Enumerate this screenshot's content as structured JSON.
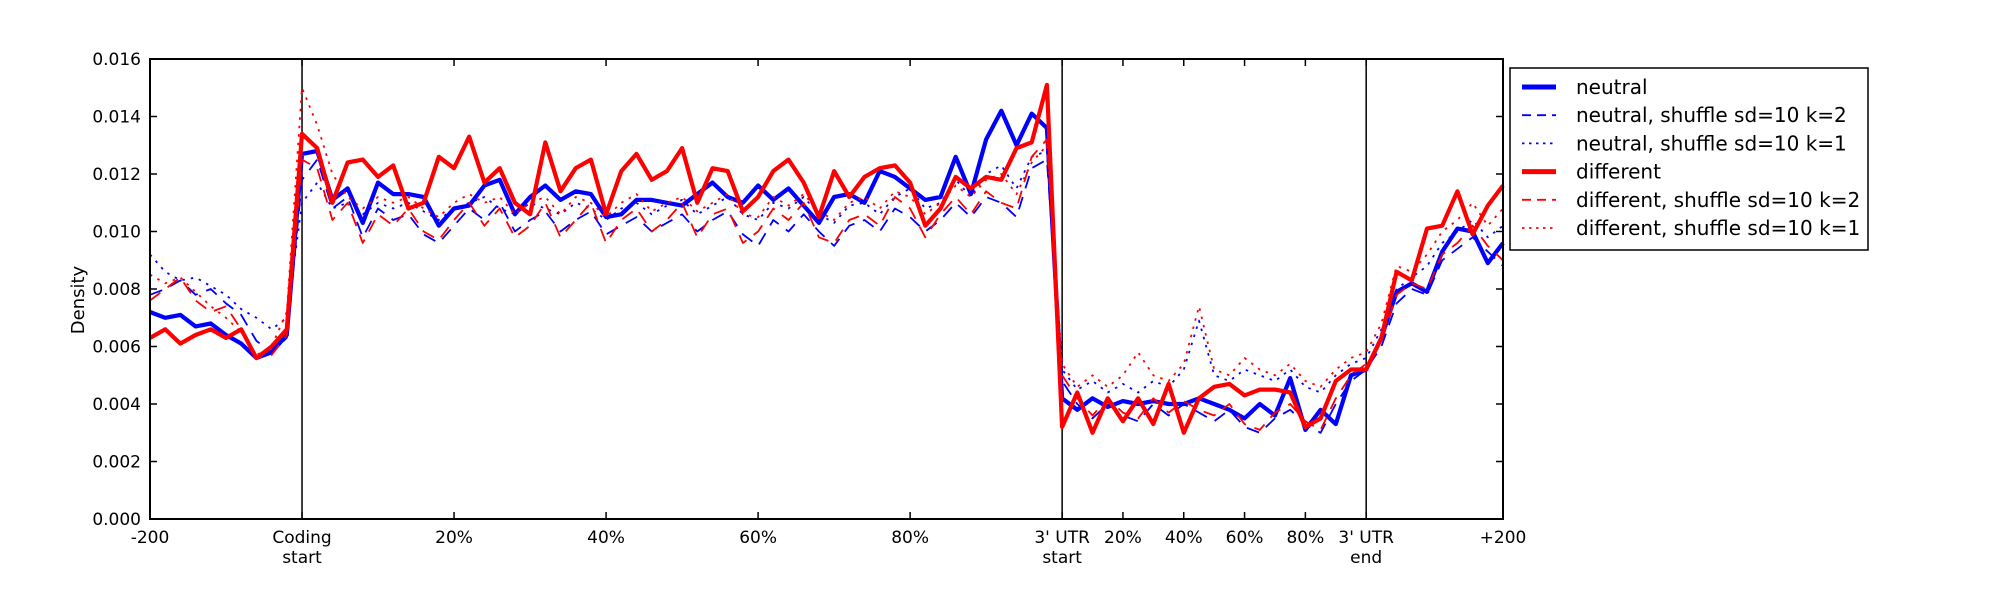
{
  "figure": {
    "background": "#ffffff",
    "frame_color": "#000000"
  },
  "chart_data": {
    "type": "line",
    "title": "",
    "ylabel": "Density",
    "xlabel": "",
    "ylim": [
      0,
      0.016
    ],
    "grid": false,
    "legend_position": "outside-top-right",
    "n_bins": 90,
    "segments": [
      {
        "name": "upstream",
        "start_bin": 0,
        "end_bin": 10,
        "range_label": "-200 to Coding start"
      },
      {
        "name": "coding",
        "start_bin": 10,
        "end_bin": 60,
        "range_label": "Coding 0-100%"
      },
      {
        "name": "three-prime-utr",
        "start_bin": 60,
        "end_bin": 80,
        "range_label": "3' UTR 0-100%"
      },
      {
        "name": "downstream",
        "start_bin": 80,
        "end_bin": 90,
        "range_label": "3' UTR end to +200"
      }
    ],
    "boundary_lines_bins": [
      10,
      60,
      80
    ],
    "yticks": [
      {
        "value": 0.0,
        "label": "0.000"
      },
      {
        "value": 0.002,
        "label": "0.002"
      },
      {
        "value": 0.004,
        "label": "0.004"
      },
      {
        "value": 0.006,
        "label": "0.006"
      },
      {
        "value": 0.008,
        "label": "0.008"
      },
      {
        "value": 0.01,
        "label": "0.010"
      },
      {
        "value": 0.012,
        "label": "0.012"
      },
      {
        "value": 0.014,
        "label": "0.014"
      },
      {
        "value": 0.016,
        "label": "0.016"
      }
    ],
    "xticks": [
      {
        "bin": 0,
        "label": "-200",
        "label2": ""
      },
      {
        "bin": 10,
        "label": "Coding",
        "label2": "start"
      },
      {
        "bin": 20,
        "label": "20%",
        "label2": ""
      },
      {
        "bin": 30,
        "label": "40%",
        "label2": ""
      },
      {
        "bin": 40,
        "label": "60%",
        "label2": ""
      },
      {
        "bin": 50,
        "label": "80%",
        "label2": ""
      },
      {
        "bin": 60,
        "label": "3' UTR",
        "label2": "start"
      },
      {
        "bin": 64,
        "label": "20%",
        "label2": ""
      },
      {
        "bin": 68,
        "label": "40%",
        "label2": ""
      },
      {
        "bin": 72,
        "label": "60%",
        "label2": ""
      },
      {
        "bin": 76,
        "label": "80%",
        "label2": ""
      },
      {
        "bin": 80,
        "label": "3' UTR",
        "label2": "end"
      },
      {
        "bin": 89,
        "label": "+200",
        "label2": ""
      }
    ],
    "series": [
      {
        "name": "neutral",
        "label": "neutral",
        "color": "#0000ff",
        "style": "solid",
        "values": [
          0.0072,
          0.007,
          0.0071,
          0.0067,
          0.0068,
          0.0064,
          0.0061,
          0.0056,
          0.0058,
          0.0064,
          0.0127,
          0.0128,
          0.0111,
          0.0115,
          0.0103,
          0.0117,
          0.0113,
          0.0113,
          0.0112,
          0.0102,
          0.0108,
          0.0109,
          0.0116,
          0.0118,
          0.0106,
          0.0112,
          0.0116,
          0.0111,
          0.0114,
          0.0113,
          0.0105,
          0.0106,
          0.0111,
          0.0111,
          0.011,
          0.0109,
          0.0113,
          0.0117,
          0.0112,
          0.011,
          0.0116,
          0.0111,
          0.0115,
          0.0109,
          0.0103,
          0.0112,
          0.0113,
          0.011,
          0.0121,
          0.0119,
          0.0115,
          0.0111,
          0.0112,
          0.0126,
          0.0113,
          0.0132,
          0.0142,
          0.013,
          0.0141,
          0.0136,
          0.0042,
          0.0038,
          0.0042,
          0.0039,
          0.0041,
          0.004,
          0.0041,
          0.004,
          0.004,
          0.0042,
          0.004,
          0.0038,
          0.0035,
          0.004,
          0.0036,
          0.0049,
          0.0031,
          0.0038,
          0.0033,
          0.005,
          0.0052,
          0.0063,
          0.0079,
          0.0082,
          0.0079,
          0.0093,
          0.0101,
          0.01,
          0.0089,
          0.0096
        ]
      },
      {
        "name": "neutral-shuffle-k2",
        "label": "neutral, shuffle sd=10 k=2",
        "color": "#0000ff",
        "style": "dashed",
        "values": [
          0.0078,
          0.008,
          0.0083,
          0.0078,
          0.008,
          0.0075,
          0.0071,
          0.0062,
          0.0058,
          0.0063,
          0.0118,
          0.0125,
          0.0108,
          0.0112,
          0.0098,
          0.0108,
          0.0104,
          0.0106,
          0.0099,
          0.0096,
          0.0102,
          0.0108,
          0.0104,
          0.011,
          0.01,
          0.0104,
          0.0107,
          0.01,
          0.0104,
          0.0107,
          0.0099,
          0.0102,
          0.0105,
          0.01,
          0.0103,
          0.0106,
          0.01,
          0.0104,
          0.0107,
          0.0099,
          0.0095,
          0.0104,
          0.01,
          0.0106,
          0.01,
          0.0095,
          0.0102,
          0.0104,
          0.01,
          0.0108,
          0.0105,
          0.01,
          0.0104,
          0.011,
          0.0105,
          0.0112,
          0.011,
          0.0105,
          0.0122,
          0.0125,
          0.0048,
          0.004,
          0.0035,
          0.004,
          0.0036,
          0.0034,
          0.004,
          0.0036,
          0.004,
          0.0037,
          0.0034,
          0.0038,
          0.0032,
          0.003,
          0.0035,
          0.0038,
          0.0033,
          0.003,
          0.004,
          0.0048,
          0.0052,
          0.006,
          0.0075,
          0.008,
          0.0078,
          0.009,
          0.0094,
          0.0098,
          0.0093,
          0.0088
        ]
      },
      {
        "name": "neutral-shuffle-k1",
        "label": "neutral, shuffle sd=10 k=1",
        "color": "#0000ff",
        "style": "dotted",
        "values": [
          0.0092,
          0.0086,
          0.0083,
          0.0084,
          0.0081,
          0.0078,
          0.0073,
          0.007,
          0.0066,
          0.007,
          0.011,
          0.0117,
          0.0108,
          0.011,
          0.0106,
          0.011,
          0.0108,
          0.011,
          0.0107,
          0.0104,
          0.0108,
          0.011,
          0.0112,
          0.0108,
          0.0106,
          0.011,
          0.0108,
          0.0106,
          0.011,
          0.0108,
          0.0104,
          0.0108,
          0.011,
          0.0106,
          0.0109,
          0.0111,
          0.0106,
          0.0109,
          0.0112,
          0.0106,
          0.0104,
          0.011,
          0.0108,
          0.0112,
          0.0106,
          0.0103,
          0.0109,
          0.011,
          0.0106,
          0.0112,
          0.0115,
          0.0108,
          0.011,
          0.0118,
          0.0112,
          0.012,
          0.0123,
          0.0115,
          0.0126,
          0.0128,
          0.0052,
          0.0045,
          0.0048,
          0.0044,
          0.0047,
          0.0044,
          0.0048,
          0.0046,
          0.0052,
          0.0069,
          0.005,
          0.0048,
          0.0052,
          0.005,
          0.0048,
          0.0052,
          0.0046,
          0.0044,
          0.005,
          0.0054,
          0.0056,
          0.0066,
          0.008,
          0.0084,
          0.0088,
          0.0096,
          0.01,
          0.0104,
          0.0098,
          0.0102
        ]
      },
      {
        "name": "different",
        "label": "different",
        "color": "#ff0000",
        "style": "solid",
        "values": [
          0.0063,
          0.0066,
          0.0061,
          0.0064,
          0.0066,
          0.0063,
          0.0066,
          0.0056,
          0.006,
          0.0066,
          0.0134,
          0.0129,
          0.011,
          0.0124,
          0.0125,
          0.0119,
          0.0123,
          0.0108,
          0.011,
          0.0126,
          0.0122,
          0.0133,
          0.0117,
          0.0122,
          0.011,
          0.0106,
          0.0131,
          0.0114,
          0.0122,
          0.0125,
          0.0106,
          0.0121,
          0.0127,
          0.0118,
          0.0121,
          0.0129,
          0.011,
          0.0122,
          0.0121,
          0.0107,
          0.0112,
          0.0121,
          0.0125,
          0.0117,
          0.0105,
          0.0121,
          0.0112,
          0.0119,
          0.0122,
          0.0123,
          0.0117,
          0.0102,
          0.0108,
          0.0119,
          0.0115,
          0.0119,
          0.0118,
          0.0129,
          0.0131,
          0.0151,
          0.0032,
          0.0044,
          0.003,
          0.0042,
          0.0034,
          0.0042,
          0.0033,
          0.0047,
          0.003,
          0.0042,
          0.0046,
          0.0047,
          0.0043,
          0.0045,
          0.0045,
          0.0044,
          0.0032,
          0.0035,
          0.0048,
          0.0052,
          0.0052,
          0.0063,
          0.0086,
          0.0083,
          0.0101,
          0.0102,
          0.0114,
          0.0099,
          0.0109,
          0.0116
        ]
      },
      {
        "name": "different-shuffle-k2",
        "label": "different, shuffle sd=10 k=2",
        "color": "#ff0000",
        "style": "dashed",
        "values": [
          0.0076,
          0.008,
          0.0084,
          0.0076,
          0.0072,
          0.0074,
          0.0066,
          0.0056,
          0.0057,
          0.0064,
          0.0125,
          0.0122,
          0.0104,
          0.011,
          0.0096,
          0.0106,
          0.0102,
          0.0108,
          0.01,
          0.0097,
          0.0104,
          0.011,
          0.0102,
          0.0108,
          0.0098,
          0.0102,
          0.011,
          0.0098,
          0.0104,
          0.011,
          0.0096,
          0.0104,
          0.0108,
          0.01,
          0.0104,
          0.011,
          0.0098,
          0.0106,
          0.0108,
          0.0096,
          0.01,
          0.0108,
          0.0104,
          0.011,
          0.0098,
          0.0096,
          0.0104,
          0.0106,
          0.0102,
          0.0112,
          0.0108,
          0.0098,
          0.0106,
          0.0112,
          0.0106,
          0.0114,
          0.011,
          0.0108,
          0.0126,
          0.0132,
          0.005,
          0.0042,
          0.0036,
          0.0042,
          0.0037,
          0.0035,
          0.0042,
          0.0037,
          0.0041,
          0.0038,
          0.0036,
          0.004,
          0.0033,
          0.0031,
          0.0037,
          0.004,
          0.0034,
          0.0031,
          0.0042,
          0.005,
          0.0054,
          0.0062,
          0.0078,
          0.0082,
          0.008,
          0.0092,
          0.0096,
          0.0102,
          0.0095,
          0.009
        ]
      },
      {
        "name": "different-shuffle-k1",
        "label": "different, shuffle sd=10 k=1",
        "color": "#ff0000",
        "style": "dotted",
        "values": [
          0.0085,
          0.0082,
          0.0084,
          0.0079,
          0.0074,
          0.007,
          0.0065,
          0.0057,
          0.006,
          0.0072,
          0.015,
          0.0137,
          0.012,
          0.0112,
          0.0108,
          0.0112,
          0.011,
          0.0112,
          0.0108,
          0.0105,
          0.011,
          0.0113,
          0.011,
          0.0112,
          0.0106,
          0.011,
          0.0112,
          0.0106,
          0.0112,
          0.011,
          0.0105,
          0.011,
          0.0113,
          0.0107,
          0.011,
          0.0112,
          0.0107,
          0.011,
          0.0113,
          0.0106,
          0.0105,
          0.0112,
          0.0109,
          0.0113,
          0.0107,
          0.0104,
          0.011,
          0.0112,
          0.0108,
          0.0114,
          0.0112,
          0.0106,
          0.011,
          0.0116,
          0.0112,
          0.0118,
          0.012,
          0.0113,
          0.0124,
          0.013,
          0.0054,
          0.0046,
          0.005,
          0.0046,
          0.005,
          0.0058,
          0.005,
          0.0048,
          0.0054,
          0.0074,
          0.0052,
          0.005,
          0.0056,
          0.0052,
          0.005,
          0.0054,
          0.0048,
          0.0046,
          0.0052,
          0.0056,
          0.0058,
          0.0068,
          0.0088,
          0.0086,
          0.0092,
          0.01,
          0.0104,
          0.011,
          0.0102,
          0.0108
        ]
      }
    ]
  }
}
